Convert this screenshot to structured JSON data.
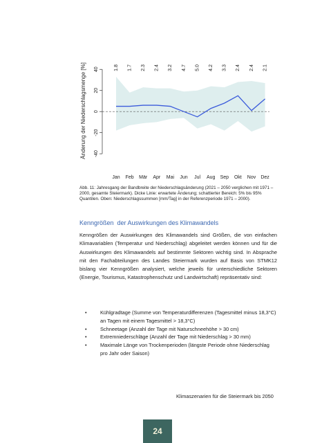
{
  "chart_data": {
    "type": "line",
    "y_label": "Änderung der Niederschlagsmenge [%]",
    "categories": [
      "Jan",
      "Feb",
      "Mär",
      "Apr",
      "Mai",
      "Jun",
      "Jul",
      "Aug",
      "Sep",
      "Okt",
      "Nov",
      "Dez"
    ],
    "reference_precip": {
      "values": [
        1.8,
        1.7,
        2.3,
        2.4,
        3.2,
        4.7,
        5.0,
        4.2,
        3.3,
        2.4,
        2.4,
        2.1
      ],
      "value_labels": [
        "1.8",
        "1.7",
        "2.3",
        "2.4",
        "3.2",
        "4.7",
        "5.0",
        "4.2",
        "3.3",
        "2.4",
        "2.4",
        "2.1"
      ]
    },
    "series": [
      {
        "color": "#3b5bdb",
        "values": [
          5,
          5,
          6,
          6,
          5,
          0,
          -5,
          3,
          8,
          15,
          1,
          12
        ]
      }
    ],
    "band": {
      "color": "#deeeee",
      "upper": [
        33,
        18,
        23,
        22,
        22,
        19,
        20,
        24,
        23,
        28,
        29,
        27
      ],
      "lower": [
        -18,
        -13,
        -11,
        -10,
        -7,
        -6,
        -16,
        -12,
        -18,
        -9,
        -19,
        -14
      ]
    },
    "ylim": [
      -55,
      50
    ],
    "yticks": [
      -40,
      -20,
      0,
      20,
      40
    ]
  },
  "caption": "Abb. 11: Jahresgang der Bandbreite der Niederschlagsänderung (2021 – 2050 verglichen mit 1971 – 2000, gesamte Steiermark). Dicke Linie: erwartete Änderung; schattierter Bereich: 5% bis 95% Quantilen. Oben: Niederschlagssummen [mm/Tag] in der Referenzperiode 1971 – 2000).",
  "section": {
    "heading": "Kenngrößen  der Auswirkungen des Klimawandels",
    "paragraph": "Kenngrößen der Auswirkungen des Klimawandels sind Größen, die von einfachen Klimavariablen (Temperatur und Niederschlag) abgeleitet werden können und für die Auswirkungen des Klimawandels auf bestimmte Sektoren wichtig sind. In Absprache mit den Fachabteilungen des Landes Steiermark wurden auf Basis von STMK12 bislang vier Kenngrößen analysiert, welche jeweils für unterschiedliche Sektoren (Energie, Tourismus, Katastrophenschutz und Landwirtschaft) repräsentativ sind:",
    "bullets": [
      "Kühlgradtage (Summe von Temperaturdifferenzen (Tagesmittel minus 18,3°C) an Tagen mit einem Tagesmittel > 18,3°C)",
      "Schneetage (Anzahl der Tage mit Naturschneehöhe > 30 cm)",
      "Extremniederschläge (Anzahl der Tage mit Niederschlag > 30 mm)",
      "Maximale Länge von Trockenperioden (längste Periode ohne Niederschlag pro Jahr oder Saison)"
    ]
  },
  "footer": "Klimaszenarien für die Steiermark bis 2050",
  "page_number": "24"
}
